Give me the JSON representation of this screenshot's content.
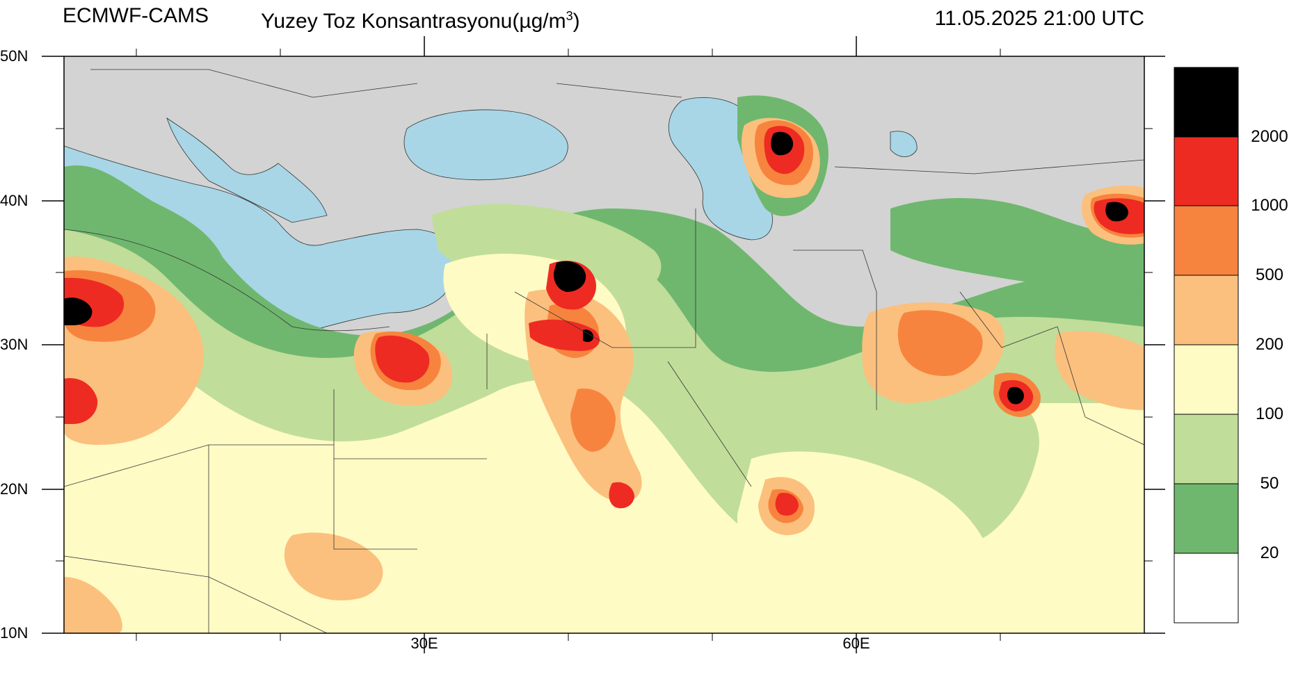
{
  "header": {
    "model": "ECMWF-CAMS",
    "variable_title": "Yuzey Toz Konsantrasyonu(µg/m",
    "variable_sup": "3",
    "variable_close": ")",
    "datetime": "11.05.2025 21:00 UTC"
  },
  "axes": {
    "lat_labels": [
      "50N",
      "40N",
      "30N",
      "20N",
      "10N"
    ],
    "lon_labels": [
      "30E",
      "60E"
    ]
  },
  "colorbar": {
    "levels": [
      "2000",
      "1000",
      "500",
      "200",
      "100",
      "50",
      "20"
    ],
    "colors": [
      "#000000",
      "#ee2b22",
      "#f7843e",
      "#fbc07e",
      "#fffbc4",
      "#c1dd9a",
      "#6fb76e",
      "#ffffff"
    ]
  },
  "palette": {
    "land": "#d3d3d3",
    "water": "#a8d6e6",
    "border": "#333333"
  }
}
